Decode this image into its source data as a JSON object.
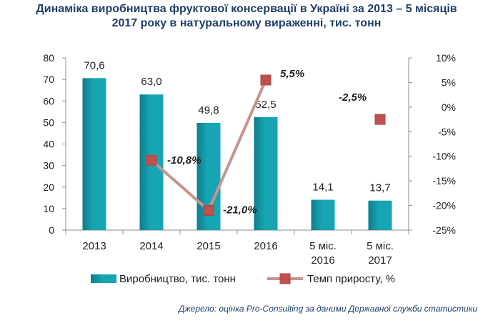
{
  "title": {
    "line1": "Динаміка виробництва фруктової консервації в Україні за  2013 – 5 місяців",
    "line2": "2017 року в натуральному вираженні, тис. тонн"
  },
  "source": "Джерело: оцінка Pro-Consulting за даними Державної служби статистики",
  "colors": {
    "bar": "#17a5b4",
    "bar_dark": "#0e7d8a",
    "line": "#c9938e",
    "marker": "#c0504d",
    "text": "#1f1f1f",
    "title": "#1f3f6b"
  },
  "chart_data": {
    "type": "bar",
    "categories": [
      [
        "2013"
      ],
      [
        "2014"
      ],
      [
        "2015"
      ],
      [
        "2016"
      ],
      [
        "5 міс.",
        "2016"
      ],
      [
        "5 міс.",
        "2017"
      ]
    ],
    "series": [
      {
        "name": "Виробництво, тис. тонн",
        "type": "bar",
        "axis": "left",
        "values": [
          70.6,
          63.0,
          49.8,
          52.5,
          14.1,
          13.7
        ],
        "labels": [
          "70,6",
          "63,0",
          "49,8",
          "52,5",
          "14,1",
          "13,7"
        ]
      },
      {
        "name": "Темп приросту, %",
        "type": "line",
        "axis": "right",
        "values": [
          null,
          -10.8,
          -21.0,
          5.5,
          null,
          -2.5
        ],
        "labels": [
          "",
          "-10,8%",
          "-21,0%",
          "5,5%",
          "",
          "-2,5%"
        ],
        "connect": [
          [
            1,
            2
          ],
          [
            2,
            3
          ]
        ]
      }
    ],
    "y_left": {
      "min": 0,
      "max": 80,
      "step": 10,
      "ticks": [
        "0",
        "10",
        "20",
        "30",
        "40",
        "50",
        "60",
        "70",
        "80"
      ]
    },
    "y_right": {
      "min": -25,
      "max": 10,
      "step": 5,
      "ticks": [
        "-25%",
        "-20%",
        "-15%",
        "-10%",
        "-5%",
        "0%",
        "5%",
        "10%"
      ]
    },
    "legend_position": "bottom",
    "grid": false
  }
}
